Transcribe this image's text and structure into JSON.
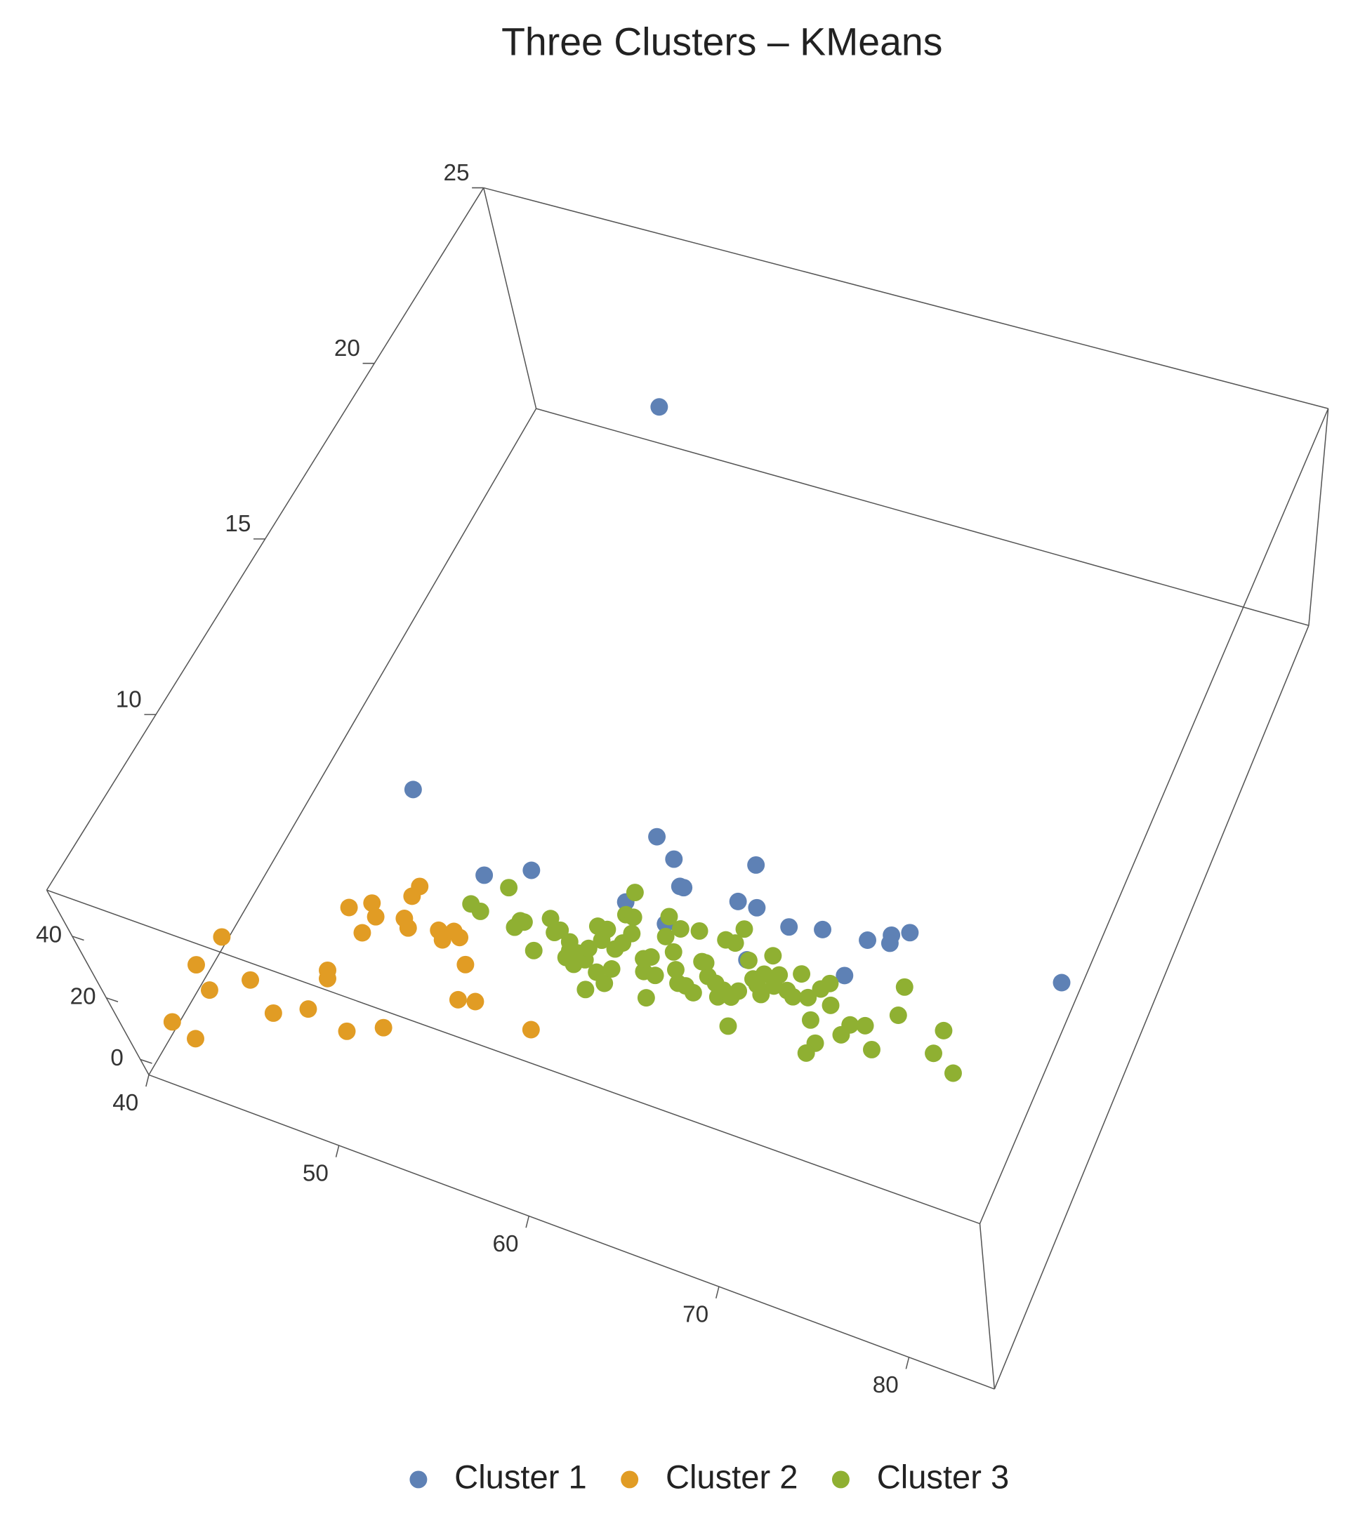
{
  "chart_data": {
    "type": "scatter3d",
    "title": "Three Clusters – KMeans",
    "xlim": [
      40,
      84.5
    ],
    "ylim": [
      -5,
      55
    ],
    "zlim": [
      5,
      25
    ],
    "xticks": [
      40,
      50,
      60,
      70,
      80
    ],
    "yticks": [
      0,
      20,
      40
    ],
    "zticks": [
      10,
      15,
      20,
      25
    ],
    "legend": "bottom",
    "series": [
      {
        "name": "Cluster 1",
        "color": "#5e81b5",
        "x": [
          48.1,
          46.6,
          58.8,
          60.1,
          64.0,
          53.9,
          51.9,
          61.0,
          61.2,
          58.9,
          64.0,
          65.0,
          61.2,
          66.9,
          68.5,
          72.6,
          71.8,
          70.8,
          71.9,
          65.7,
          70.5,
          80.7
        ],
        "y": [
          10,
          10,
          10,
          10,
          10,
          10,
          10,
          10,
          10,
          10,
          10,
          10,
          10,
          10,
          10,
          10,
          10,
          10,
          10,
          10,
          10,
          10
        ],
        "z": [
          24.6,
          13.3,
          14.1,
          13.7,
          14.2,
          12.3,
          11.8,
          13.1,
          13.1,
          12.3,
          13.2,
          13.2,
          12.1,
          13.0,
          13.2,
          13.8,
          13.6,
          13.3,
          13.4,
          11.9,
          12.3,
          13.8
        ]
      },
      {
        "name": "Cluster 2",
        "color": "#e19c24",
        "x": [
          41.9,
          41.5,
          42.7,
          41.9,
          43.3,
          44.2,
          46.0,
          47.4,
          47.3,
          47.5,
          49.6,
          51.1,
          46.7,
          47.6,
          48.1,
          47.9,
          49.4,
          49.8,
          49.2,
          49.3,
          51.2,
          51.6,
          51.9,
          52.3,
          53.2,
          53.7,
          54.5,
          57.6
        ],
        "y": [
          10,
          10,
          10,
          10,
          10,
          10,
          10,
          10,
          10,
          10,
          10,
          10,
          10,
          10,
          10,
          10,
          10,
          10,
          10,
          10,
          10,
          10,
          10,
          10,
          10,
          10,
          10,
          10
        ],
        "z": [
          8.1,
          7.2,
          6.7,
          5.6,
          5.4,
          7.3,
          6.7,
          7.1,
          8.2,
          8.0,
          6.9,
          7.3,
          9.9,
          10.2,
          9.9,
          9.4,
          10.1,
          9.9,
          10.7,
          11.0,
          10.1,
          9.9,
          10.2,
          10.1,
          9.5,
          8.6,
          8.7,
          8.5
        ]
      },
      {
        "name": "Cluster 3",
        "color": "#8fb032",
        "x": [
          52.0,
          52.6,
          53.3,
          54.5,
          54.8,
          55.9,
          55.9,
          56.4,
          56.6,
          57.3,
          57.5,
          57.5,
          57.9,
          58.4,
          58.3,
          59.1,
          58.2,
          58.7,
          58.7,
          59.8,
          59.8,
          59.5,
          59.7,
          59.2,
          59.9,
          59.1,
          59.6,
          61.3,
          62.0,
          61.3,
          61.9,
          61.2,
          61.5,
          62.2,
          62.7,
          62.0,
          63.5,
          64.0,
          62.9,
          63.9,
          64.3,
          64.8,
          65.2,
          65.3,
          64.3,
          66.3,
          64.8,
          66.0,
          64.9,
          65.8,
          66.4,
          67.1,
          66.8,
          66.8,
          67.5,
          67.5,
          68.2,
          68.5,
          69.3,
          69.9,
          70.6,
          70.4,
          69.7,
          70.0,
          70.5,
          71.6,
          71.8,
          72.5,
          73.3,
          73.8,
          73.5,
          76.2,
          76.2,
          77.5,
          54.6,
          58.0,
          59.2,
          61.0,
          63.1,
          63.7,
          65.8,
          66.7,
          68.6
        ],
        "y": [
          10,
          10,
          10,
          10,
          10,
          10,
          10,
          10,
          10,
          10,
          10,
          10,
          10,
          10,
          10,
          10,
          10,
          10,
          10,
          10,
          10,
          10,
          10,
          10,
          10,
          10,
          10,
          10,
          10,
          10,
          10,
          10,
          10,
          10,
          10,
          10,
          10,
          10,
          10,
          10,
          10,
          10,
          10,
          10,
          10,
          10,
          10,
          10,
          10,
          10,
          10,
          10,
          10,
          10,
          10,
          10,
          10,
          10,
          10,
          10,
          10,
          10,
          10,
          10,
          10,
          10,
          10,
          10,
          10,
          10,
          10,
          10,
          10,
          10,
          10,
          10,
          10,
          10,
          10,
          10,
          10,
          10,
          10
        ],
        "z": [
          11.0,
          10.9,
          11.7,
          10.8,
          11.0,
          10.4,
          11.3,
          11.0,
          11.1,
          10.9,
          10.5,
          10.7,
          10.7,
          10.6,
          10.9,
          9.9,
          11.5,
          11.2,
          11.5,
          10.2,
          10.6,
          11.1,
          11.3,
          12.0,
          11.6,
          12.6,
          12.0,
          10.8,
          10.2,
          11.2,
          10.8,
          12.3,
          11.8,
          11.5,
          11.1,
          12.1,
          10.8,
          10.7,
          12.2,
          11.5,
          11.2,
          11.1,
          10.8,
          11.0,
          12.2,
          10.2,
          12.2,
          11.1,
          12.6,
          11.9,
          11.5,
          11.2,
          11.7,
          12.2,
          11.5,
          11.8,
          11.5,
          12.0,
          11.5,
          11.0,
          10.5,
          10.2,
          11.8,
          12.0,
          11.5,
          10.9,
          11.2,
          11.3,
          10.8,
          11.8,
          12.5,
          11.2,
          11.8,
          10.9,
          11.0,
          10.4,
          10.4,
          11.1,
          10.8,
          11.5,
          10.9,
          11.4,
          11.4
        ]
      }
    ]
  }
}
